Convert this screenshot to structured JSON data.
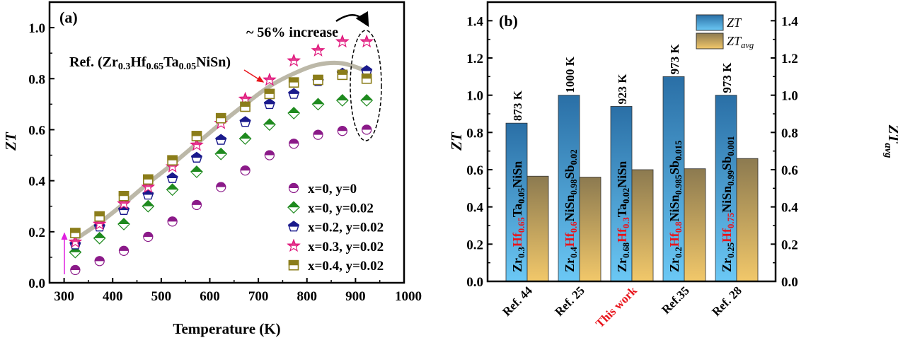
{
  "chart_data": [
    {
      "type": "scatter",
      "panel_label": "(a)",
      "xlabel": "Temperature (K)",
      "ylabel": "ZT",
      "xlim": [
        270,
        1000
      ],
      "ylim": [
        0,
        1.1
      ],
      "xticks": [
        300,
        400,
        500,
        600,
        700,
        800,
        900,
        1000
      ],
      "yticks": [
        0.0,
        0.2,
        0.4,
        0.6,
        0.8,
        1.0
      ],
      "x": [
        323,
        373,
        423,
        473,
        523,
        573,
        623,
        673,
        723,
        773,
        823,
        873,
        923
      ],
      "series": [
        {
          "name": "x=0,    y=0",
          "marker": "circle",
          "color": "#8B1A89",
          "values": [
            0.05,
            0.085,
            0.125,
            0.18,
            0.24,
            0.305,
            0.375,
            0.44,
            0.5,
            0.545,
            0.58,
            0.595,
            0.6
          ]
        },
        {
          "name": "x=0,    y=0.02",
          "marker": "diamond",
          "color": "#1E8A1E",
          "values": [
            0.12,
            0.175,
            0.23,
            0.3,
            0.365,
            0.435,
            0.505,
            0.565,
            0.62,
            0.665,
            0.7,
            0.715,
            0.715
          ]
        },
        {
          "name": "x=0.2, y=0.02",
          "marker": "pentagon",
          "color": "#1A1A8C",
          "values": [
            0.15,
            0.22,
            0.285,
            0.345,
            0.41,
            0.49,
            0.56,
            0.63,
            0.7,
            0.74,
            0.79,
            0.82,
            0.83
          ]
        },
        {
          "name": "x=0.3, y=0.02",
          "marker": "star",
          "color": "#E0197D",
          "values": [
            0.16,
            0.23,
            0.31,
            0.375,
            0.455,
            0.54,
            0.625,
            0.72,
            0.795,
            0.87,
            0.91,
            0.945,
            0.945
          ]
        },
        {
          "name": "x=0.4, y=0.02",
          "marker": "square",
          "color": "#8B7D1A",
          "values": [
            0.195,
            0.26,
            0.34,
            0.405,
            0.48,
            0.575,
            0.645,
            0.69,
            0.74,
            0.785,
            0.795,
            0.815,
            0.8
          ]
        }
      ],
      "reference_curve": {
        "color": "#B5B09F",
        "values": [
          0.17,
          0.235,
          0.31,
          0.39,
          0.465,
          0.545,
          0.625,
          0.7,
          0.77,
          0.82,
          0.855,
          0.86,
          0.83
        ]
      },
      "annotations": {
        "increase": "~ 56% increase",
        "ref_label": [
          {
            "t": "Ref. (Zr"
          },
          {
            "t": "0.3",
            "sub": true
          },
          {
            "t": "Hf"
          },
          {
            "t": "0.65",
            "sub": true
          },
          {
            "t": "Ta"
          },
          {
            "t": "0.05",
            "sub": true
          },
          {
            "t": "NiSn)"
          }
        ]
      }
    },
    {
      "type": "bar",
      "panel_label": "(b)",
      "ylabel": "ZT",
      "ylabel_right": "ZT",
      "ylabel_right_sub": "avg",
      "ylim": [
        0,
        1.5
      ],
      "yticks": [
        0.0,
        0.2,
        0.4,
        0.6,
        0.8,
        1.0,
        1.2,
        1.4
      ],
      "categories": [
        "Ref. 44",
        "Ref. 25",
        "This work",
        "Ref.35",
        "Ref. 28"
      ],
      "highlight_category": "This work",
      "highlight_color": "#E8141B",
      "series": [
        {
          "name": "ZT",
          "sub": "",
          "values": [
            0.85,
            1.0,
            0.94,
            1.1,
            1.0
          ],
          "colors": [
            "#2A6FA6",
            "#6BC8F5"
          ]
        },
        {
          "name": "ZT",
          "sub": "avg",
          "values": [
            0.565,
            0.56,
            0.6,
            0.605,
            0.66
          ],
          "colors": [
            "#8C7A50",
            "#F2C86A"
          ]
        }
      ],
      "temperatures": [
        "873 K",
        "1000 K",
        "923 K",
        "973 K",
        "973 K"
      ],
      "compositions": [
        [
          {
            "t": "Zr"
          },
          {
            "t": "0.3",
            "sub": true
          },
          {
            "t": "Hf",
            "red": true
          },
          {
            "t": "0.65",
            "sub": true,
            "red": true
          },
          {
            "t": "Ta"
          },
          {
            "t": "0.05",
            "sub": true
          },
          {
            "t": "NiSn"
          }
        ],
        [
          {
            "t": "Zr"
          },
          {
            "t": "0.4",
            "sub": true
          },
          {
            "t": "Hf",
            "red": true
          },
          {
            "t": "0.6",
            "sub": true,
            "red": true
          },
          {
            "t": "NiSn"
          },
          {
            "t": "0.98",
            "sub": true
          },
          {
            "t": "Sb"
          },
          {
            "t": "0.02",
            "sub": true
          }
        ],
        [
          {
            "t": "Zr"
          },
          {
            "t": "0.68",
            "sub": true
          },
          {
            "t": "Hf",
            "red": true
          },
          {
            "t": "0.3",
            "sub": true,
            "red": true
          },
          {
            "t": "Ta"
          },
          {
            "t": "0.02",
            "sub": true
          },
          {
            "t": "NiSn"
          }
        ],
        [
          {
            "t": "Zr"
          },
          {
            "t": "0.2",
            "sub": true
          },
          {
            "t": "Hf",
            "red": true
          },
          {
            "t": "0.8",
            "sub": true,
            "red": true
          },
          {
            "t": "NiSn"
          },
          {
            "t": "0.985",
            "sub": true
          },
          {
            "t": "Sb"
          },
          {
            "t": "0.015",
            "sub": true
          }
        ],
        [
          {
            "t": "Zr"
          },
          {
            "t": "0.25",
            "sub": true
          },
          {
            "t": "Hf",
            "red": true
          },
          {
            "t": "0.75",
            "sub": true,
            "red": true
          },
          {
            "t": "NiSn"
          },
          {
            "t": "0.99",
            "sub": true
          },
          {
            "t": "Sb"
          },
          {
            "t": "0.001",
            "sub": true
          }
        ]
      ]
    }
  ]
}
